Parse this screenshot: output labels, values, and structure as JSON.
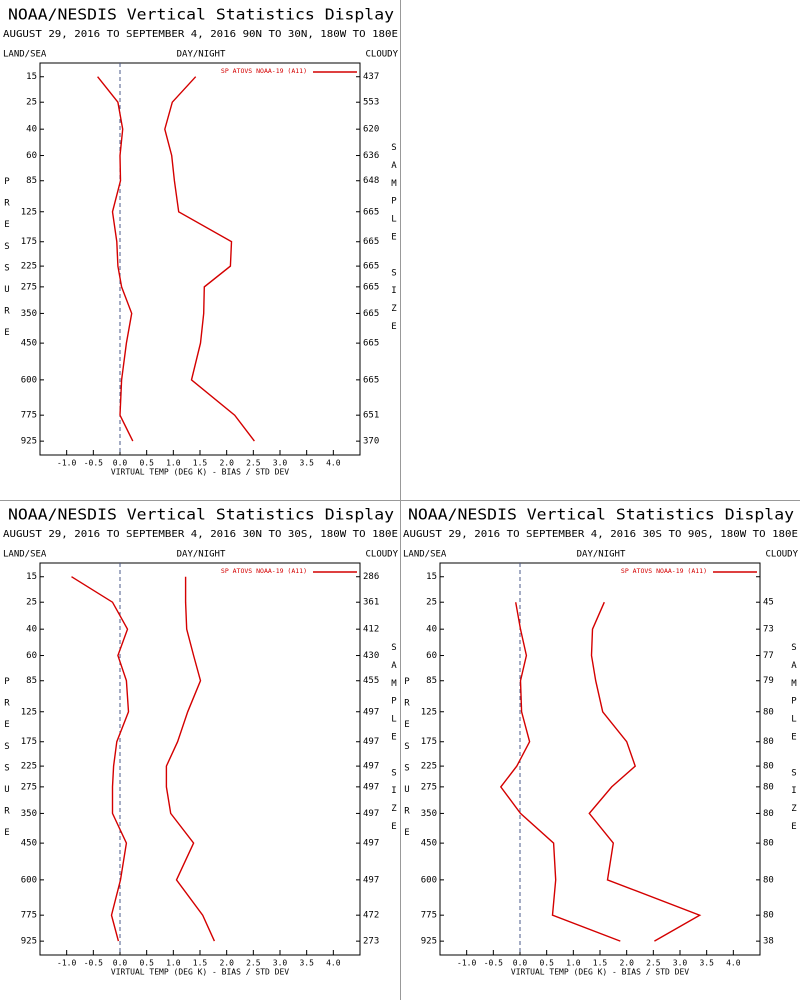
{
  "chart_data": [
    {
      "type": "line",
      "title": "NOAA/NESDIS Vertical Statistics Display",
      "subtitle": "AUGUST 29, 2016 TO SEPTEMBER 4, 2016  90N TO 30N, 180W TO 180E",
      "left_label": "LAND/SEA",
      "center_label": "DAY/NIGHT",
      "right_label": "CLOUDY",
      "ylabel": "PRESSURE",
      "y2label": "SAMPLE SIZE",
      "xlabel": "VIRTUAL TEMP (DEG K) - BIAS / STD DEV",
      "y": [
        15,
        25,
        40,
        60,
        85,
        125,
        175,
        225,
        275,
        350,
        450,
        600,
        775,
        925
      ],
      "ylim": [
        11,
        1013
      ],
      "xlim": [
        -1.5,
        4.5
      ],
      "xticks": [
        {
          "value": -1,
          "label": "-1.0"
        },
        -0.5,
        {
          "value": 0,
          "label": "0.0"
        },
        0.5,
        {
          "value": 1,
          "label": "1.0"
        },
        1.5,
        {
          "value": 2,
          "label": "2.0"
        },
        2.5,
        {
          "value": 3,
          "label": "3.0"
        },
        3.5,
        {
          "value": 4,
          "label": "4.0"
        }
      ],
      "sample_size": [
        437,
        553,
        620,
        636,
        648,
        665,
        665,
        665,
        665,
        665,
        665,
        665,
        651,
        370
      ],
      "series": [
        {
          "name": "SP ATOVS NOAA-19 (A11)",
          "color": "#d40000",
          "bias": [
            -0.42,
            -0.04,
            0.05,
            0,
            0.01,
            -0.14,
            -0.06,
            -0.04,
            0.03,
            0.22,
            0.12,
            0.03,
            0,
            0.24
          ],
          "std_dev": [
            1.42,
            0.98,
            0.84,
            0.97,
            1.02,
            1.1,
            2.09,
            2.07,
            1.58,
            1.57,
            1.51,
            1.34,
            2.15,
            2.52
          ]
        }
      ]
    },
    {
      "type": "line",
      "title": "NOAA/NESDIS Vertical Statistics Display",
      "subtitle": "AUGUST 29, 2016 TO SEPTEMBER 4, 2016  30N TO 30S, 180W TO 180E",
      "left_label": "LAND/SEA",
      "center_label": "DAY/NIGHT",
      "right_label": "CLOUDY",
      "ylabel": "PRESSURE",
      "y2label": "SAMPLE SIZE",
      "xlabel": "VIRTUAL TEMP (DEG K) - BIAS / STD DEV",
      "y": [
        15,
        25,
        40,
        60,
        85,
        125,
        175,
        225,
        275,
        350,
        450,
        600,
        775,
        925
      ],
      "ylim": [
        11,
        1013
      ],
      "xlim": [
        -1.5,
        4.5
      ],
      "xticks": [
        {
          "value": -1,
          "label": "-1.0"
        },
        -0.5,
        {
          "value": 0,
          "label": "0.0"
        },
        0.5,
        {
          "value": 1,
          "label": "1.0"
        },
        1.5,
        {
          "value": 2,
          "label": "2.0"
        },
        2.5,
        {
          "value": 3,
          "label": "3.0"
        },
        3.5,
        {
          "value": 4,
          "label": "4.0"
        }
      ],
      "sample_size": [
        286,
        361,
        412,
        430,
        455,
        497,
        497,
        497,
        497,
        497,
        497,
        497,
        472,
        273
      ],
      "series": [
        {
          "name": "SP ATOVS NOAA-19 (A11)",
          "color": "#d40000",
          "bias": [
            -0.91,
            -0.14,
            0.14,
            -0.04,
            0.12,
            0.16,
            -0.06,
            -0.12,
            -0.14,
            -0.14,
            0.12,
            0.01,
            -0.16,
            -0.03
          ],
          "std_dev": [
            1.23,
            1.23,
            1.25,
            1.38,
            1.51,
            1.27,
            1.08,
            0.87,
            0.87,
            0.95,
            1.38,
            1.06,
            1.55,
            1.77
          ]
        }
      ]
    },
    {
      "type": "line",
      "title": "NOAA/NESDIS Vertical Statistics Display",
      "subtitle": "AUGUST 29, 2016 TO SEPTEMBER 4, 2016  30S TO 90S, 180W TO 180E",
      "left_label": "LAND/SEA",
      "center_label": "DAY/NIGHT",
      "right_label": "CLOUDY",
      "ylabel": "PRESSURE",
      "y2label": "SAMPLE SIZE",
      "xlabel": "VIRTUAL TEMP (DEG K) - BIAS / STD DEV",
      "y": [
        15,
        25,
        40,
        60,
        85,
        125,
        175,
        225,
        275,
        350,
        450,
        600,
        775,
        925
      ],
      "ylim": [
        11,
        1013
      ],
      "xlim": [
        -1.5,
        4.5
      ],
      "xticks": [
        {
          "value": -1,
          "label": "-1.0"
        },
        -0.5,
        {
          "value": 0,
          "label": "0.0"
        },
        0.5,
        {
          "value": 1,
          "label": "1.0"
        },
        1.5,
        {
          "value": 2,
          "label": "2.0"
        },
        2.5,
        {
          "value": 3,
          "label": "3.0"
        },
        3.5,
        {
          "value": 4,
          "label": "4.0"
        }
      ],
      "sample_size": [
        null,
        45,
        73,
        77,
        79,
        80,
        80,
        80,
        80,
        80,
        80,
        80,
        80,
        38
      ],
      "series": [
        {
          "name": "SP ATOVS NOAA-19 (A11)",
          "color": "#d40000",
          "bias": [
            null,
            -0.08,
            0.01,
            0.12,
            0.01,
            0.03,
            0.18,
            -0.06,
            -0.36,
            0.01,
            0.63,
            0.67,
            0.61,
            1.88
          ],
          "std_dev": [
            null,
            1.58,
            1.36,
            1.34,
            1.42,
            1.55,
            2.0,
            2.16,
            1.72,
            1.3,
            1.75,
            1.64,
            3.37,
            2.52
          ]
        }
      ]
    }
  ]
}
